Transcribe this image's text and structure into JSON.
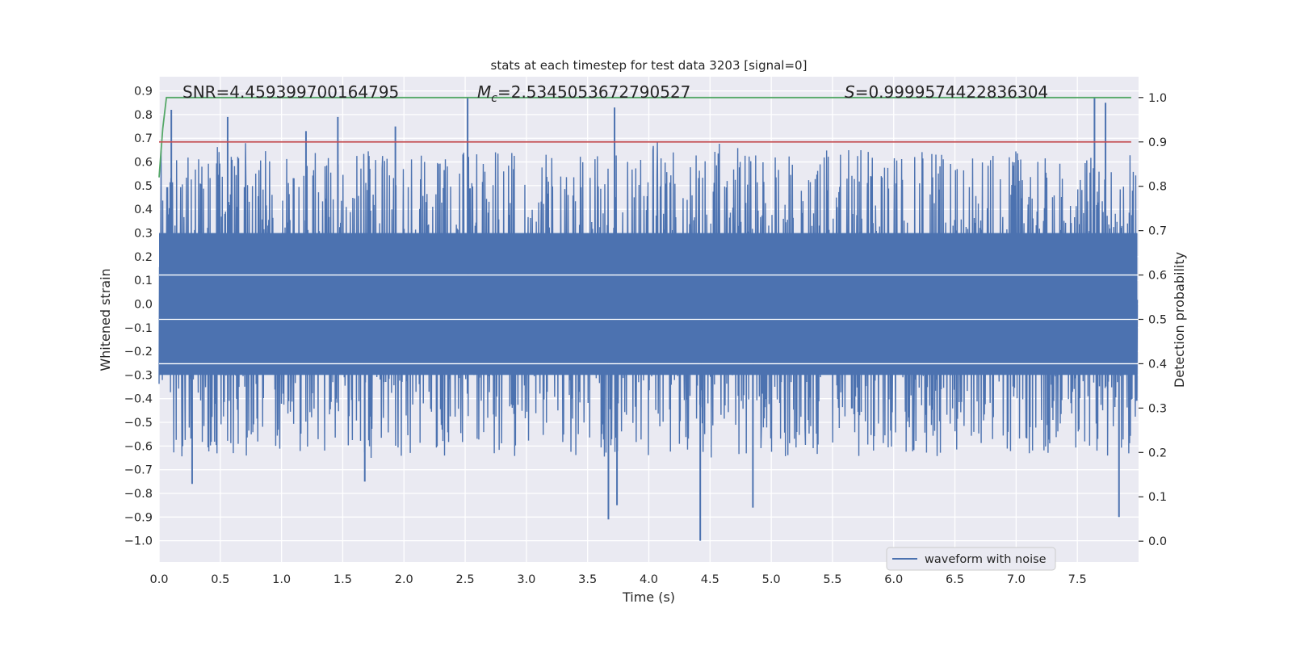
{
  "chart_data": {
    "type": "line",
    "title": "stats at each timestep for test data 3203 [signal=0]",
    "xlabel": "Time (s)",
    "ylabel": "Whitened strain",
    "y2label": "Detection probability",
    "xlim": [
      0.0,
      8.0
    ],
    "ylim": [
      -1.09,
      0.96
    ],
    "y2lim": [
      -0.047,
      1.047
    ],
    "xticks": [
      0.0,
      0.5,
      1.0,
      1.5,
      2.0,
      2.5,
      3.0,
      3.5,
      4.0,
      4.5,
      5.0,
      5.5,
      6.0,
      6.5,
      7.0,
      7.5
    ],
    "xtick_labels": [
      "0.0",
      "0.5",
      "1.0",
      "1.5",
      "2.0",
      "2.5",
      "3.0",
      "3.5",
      "4.0",
      "4.5",
      "5.0",
      "5.5",
      "6.0",
      "6.5",
      "7.0",
      "7.5"
    ],
    "yticks": [
      -1.0,
      -0.9,
      -0.8,
      -0.7,
      -0.6,
      -0.5,
      -0.4,
      -0.3,
      -0.2,
      -0.1,
      0.0,
      0.1,
      0.2,
      0.3,
      0.4,
      0.5,
      0.6,
      0.7,
      0.8,
      0.9
    ],
    "ytick_labels": [
      "−1.0",
      "−0.9",
      "−0.8",
      "−0.7",
      "−0.6",
      "−0.5",
      "−0.4",
      "−0.3",
      "−0.2",
      "−0.1",
      "0.0",
      "0.1",
      "0.2",
      "0.3",
      "0.4",
      "0.5",
      "0.6",
      "0.7",
      "0.8",
      "0.9"
    ],
    "y2ticks": [
      0.0,
      0.1,
      0.2,
      0.3,
      0.4,
      0.5,
      0.6,
      0.7,
      0.8,
      0.9,
      1.0
    ],
    "y2tick_labels": [
      "0.0",
      "0.1",
      "0.2",
      "0.3",
      "0.4",
      "0.5",
      "0.6",
      "0.7",
      "0.8",
      "0.9",
      "1.0"
    ],
    "annotations": [
      {
        "id": "snr",
        "text": "SNR=4.459399700164795"
      },
      {
        "id": "mc",
        "text": "Mc=2.5345053672790527",
        "symbol": "M",
        "subscript": "c",
        "value": "=2.5345053672790527"
      },
      {
        "id": "s",
        "text": "S=0.9999574422836304",
        "symbol": "S",
        "value": "=0.9999574422836304"
      }
    ],
    "legend": {
      "location": "lower-right",
      "label": "waveform with noise"
    },
    "series": [
      {
        "name": "waveform with noise",
        "axis": "left",
        "color": "#4c72b0",
        "style": "noisy dense signal, envelope approx ±0.5 with spikes",
        "x_range": [
          0.0,
          7.99
        ],
        "typical_upper": 0.45,
        "typical_lower": -0.45,
        "peaks": [
          {
            "x": 0.1,
            "y": 0.82
          },
          {
            "x": 0.56,
            "y": 0.79
          },
          {
            "x": 1.2,
            "y": 0.73
          },
          {
            "x": 1.46,
            "y": 0.79
          },
          {
            "x": 1.93,
            "y": 0.75
          },
          {
            "x": 2.52,
            "y": 0.87
          },
          {
            "x": 3.72,
            "y": 0.83
          },
          {
            "x": 7.64,
            "y": 0.87
          },
          {
            "x": 7.73,
            "y": 0.85
          }
        ],
        "troughs": [
          {
            "x": 0.27,
            "y": -0.76
          },
          {
            "x": 1.68,
            "y": -0.75
          },
          {
            "x": 3.67,
            "y": -0.91
          },
          {
            "x": 3.74,
            "y": -0.85
          },
          {
            "x": 4.42,
            "y": -1.0
          },
          {
            "x": 4.85,
            "y": -0.86
          },
          {
            "x": 7.84,
            "y": -0.9
          }
        ]
      },
      {
        "name": "detection probability",
        "axis": "right",
        "color": "#55a868",
        "x": [
          0.0,
          0.03,
          0.06,
          0.1,
          0.2,
          7.94
        ],
        "values": [
          0.82,
          0.93,
          1.0,
          1.0,
          1.0,
          1.0
        ]
      },
      {
        "name": "threshold",
        "axis": "right",
        "color": "#c44e52",
        "x": [
          0.0,
          7.94
        ],
        "values": [
          0.9,
          0.9
        ]
      }
    ]
  }
}
